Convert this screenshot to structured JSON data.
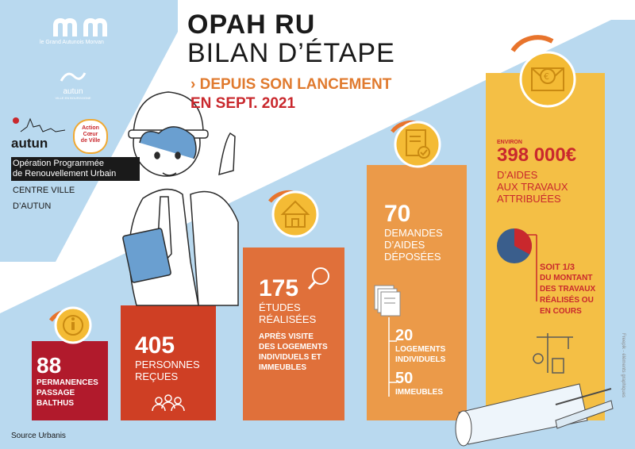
{
  "colors": {
    "light_blue": "#b9d9ef",
    "dark_red": "#b11a2c",
    "red": "#cf3f24",
    "orange": "#e0703a",
    "light_orange": "#eb9a49",
    "yellow": "#f4bf45",
    "coin": "#f4bb35"
  },
  "header": {
    "title_line1": "OPAH RU",
    "title_line2": "BILAN D’ÉTAPE",
    "subtitle_prefix": "›",
    "subtitle_line1": "DEPUIS SON LANCEMENT",
    "subtitle_line2": "EN SEPT. 2021"
  },
  "logos": {
    "grand_autunois": "le Grand Autunois Morvan",
    "autun_small": "autun",
    "autun_small_caption": "VILLE EN BOURGOGNE",
    "autun_main": "autun",
    "action_coeur": [
      "Action",
      "Cœur",
      "de Ville"
    ]
  },
  "program": {
    "line1": "Opération Programmée",
    "line2": "de Renouvellement Urbain",
    "line3": "CENTRE VILLE",
    "line4": "D’AUTUN"
  },
  "steps": [
    {
      "number": "88",
      "label_lines": [
        "PERMANENCES",
        "PASSAGE",
        "BALTHUS"
      ],
      "icon": "info-icon"
    },
    {
      "number": "405",
      "label_lines": [
        "PERSONNES",
        "REÇUES"
      ],
      "icon": "chat-bubbles-icon"
    },
    {
      "number": "175",
      "label_lines": [
        "ÉTUDES",
        "RÉALISÉES"
      ],
      "detail_lines": [
        "APRÈS VISITE",
        "DES LOGEMENTS",
        "INDIVIDUELS ET",
        "IMMEUBLES"
      ],
      "icon": "house-icon"
    },
    {
      "number": "70",
      "label_lines": [
        "DEMANDES",
        "D’AIDES",
        "DÉPOSÉES"
      ],
      "breakdown": [
        {
          "value": "20",
          "label_lines": [
            "LOGEMENTS",
            "INDIVIDUELS"
          ]
        },
        {
          "value": "50",
          "label_lines": [
            "IMMEUBLES"
          ]
        }
      ],
      "icon": "document-check-icon"
    },
    {
      "prefix": "ENVIRON",
      "number": "398 000€",
      "label_lines": [
        "D’AIDES",
        "AUX TRAVAUX",
        "ATTRIBUÉES"
      ],
      "ratio_text": "SOIT 1/3",
      "ratio_lines": [
        "DU MONTANT",
        "DES TRAVAUX",
        "RÉALISÉS OU",
        "EN COURS"
      ],
      "pie_fraction": 0.33,
      "icon": "euro-envelope-icon"
    }
  ],
  "source": "Source Urbanis",
  "credit": "Freepik - éléments graphiques"
}
